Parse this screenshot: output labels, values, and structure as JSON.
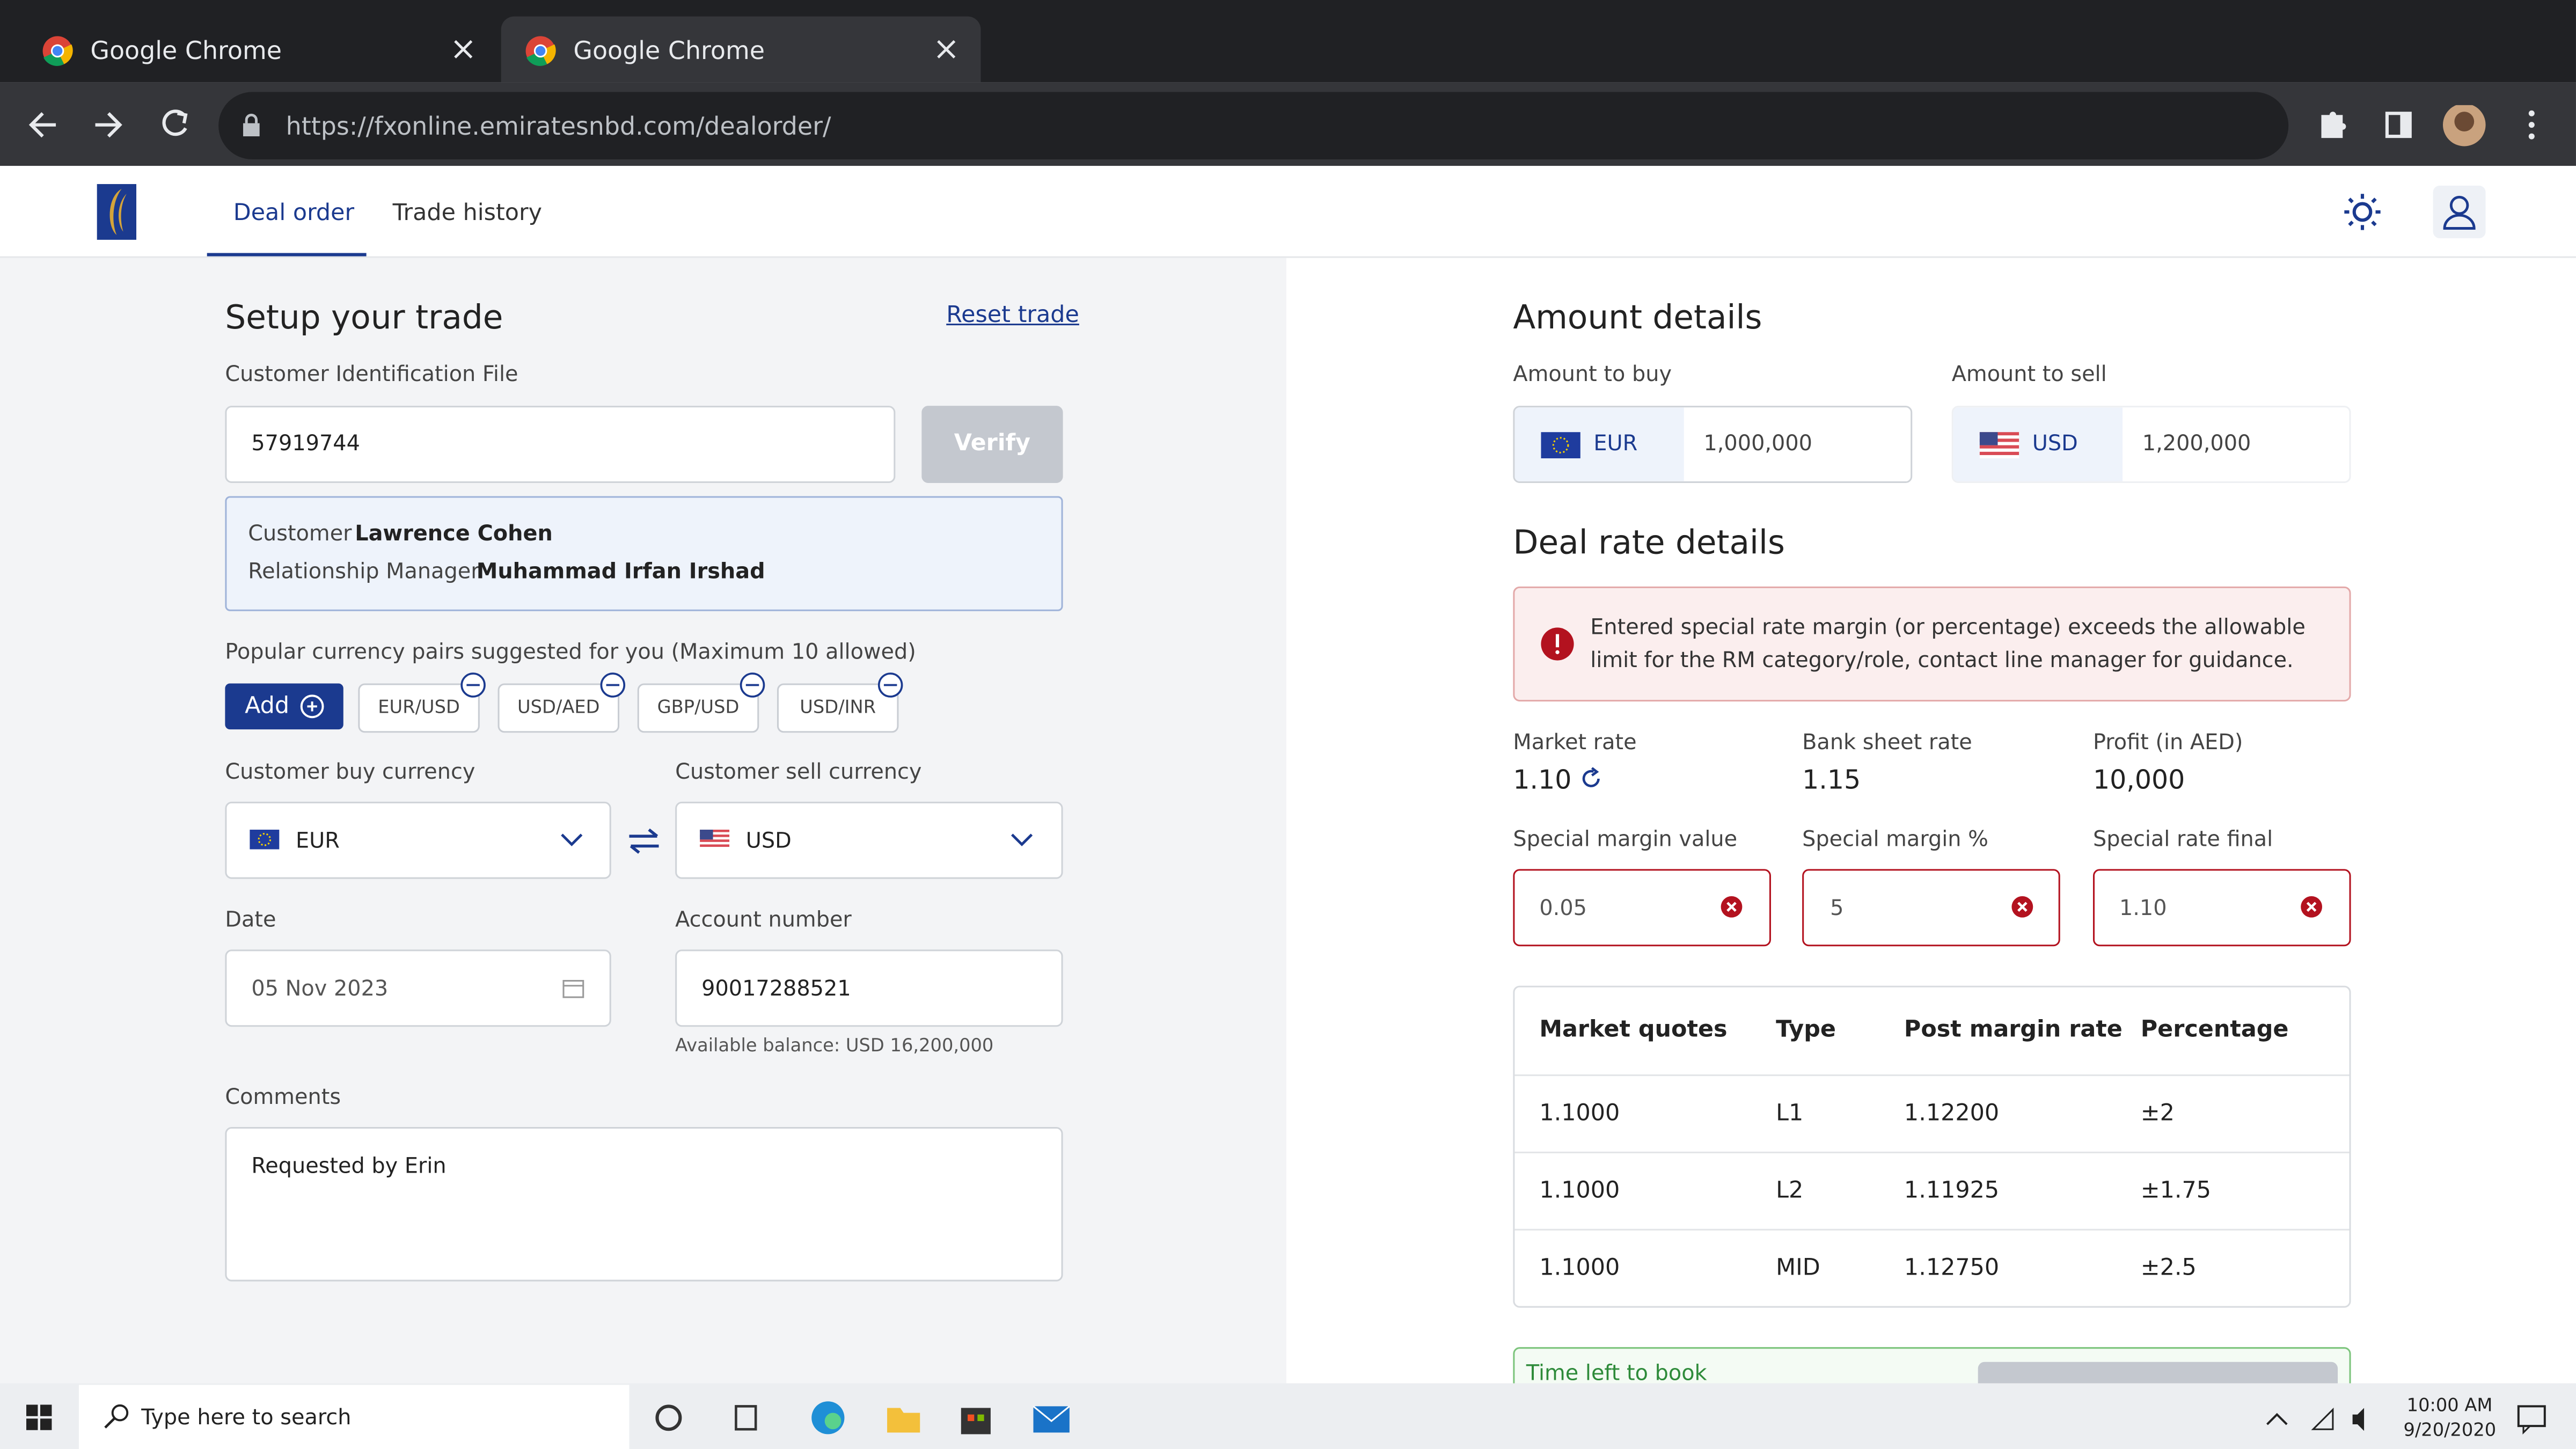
{
  "browser": {
    "tabs": [
      "Google Chrome",
      "Google Chrome"
    ],
    "url": "https://fxonline.emiratesnbd.com/dealorder/"
  },
  "nav": {
    "tabs": [
      "Deal order",
      "Trade history"
    ]
  },
  "setup": {
    "title": "Setup your trade",
    "reset": "Reset trade",
    "id_label": "Customer Identification File",
    "id_value": "57919744",
    "verify": "Verify",
    "customer_label": "Customer",
    "customer": "Lawrence Cohen",
    "rm_label": "Relationship Manager",
    "rm": "Muhammad Irfan Irshad",
    "pairs_label": "Popular currency pairs suggested for you (Maximum 10 allowed)",
    "add": "Add",
    "pairs": [
      "EUR/USD",
      "USD/AED",
      "GBP/USD",
      "USD/INR"
    ],
    "buy_label": "Customer buy currency",
    "buy": "EUR",
    "sell_label": "Customer sell currency",
    "sell": "USD",
    "date_label": "Date",
    "date": "05 Nov 2023",
    "account_label": "Account number",
    "account": "90017288521",
    "balance": "Available balance: USD 16,200,000",
    "comments_label": "Comments",
    "comments": "Requested by Erin"
  },
  "amount": {
    "title": "Amount details",
    "buy_label": "Amount to buy",
    "buy_ccy": "EUR",
    "buy_value": "1,000,000",
    "sell_label": "Amount to sell",
    "sell_ccy": "USD",
    "sell_value": "1,200,000"
  },
  "deal": {
    "title": "Deal rate details",
    "alert": "Entered special rate margin (or percentage) exceeds the allowable limit for the RM category/role, contact line manager for guidance.",
    "stats": [
      {
        "label": "Market rate",
        "value": "1.10"
      },
      {
        "label": "Bank sheet rate",
        "value": "1.15"
      },
      {
        "label": "Profit (in AED)",
        "value": "10,000"
      }
    ],
    "inputs": [
      {
        "label": "Special margin value",
        "value": "0.05"
      },
      {
        "label": "Special margin %",
        "value": "5"
      },
      {
        "label": "Special rate final",
        "value": "1.10"
      }
    ],
    "table": {
      "header": [
        "Market quotes",
        "Type",
        "Post margin rate",
        "Percentage"
      ],
      "rows": [
        [
          "1.1000",
          "L1",
          "1.12200",
          "±2"
        ],
        [
          "1.1000",
          "L2",
          "1.11925",
          "±1.75"
        ],
        [
          "1.1000",
          "MID",
          "1.12750",
          "±2.5"
        ]
      ]
    },
    "time_left": "Time left to book"
  },
  "taskbar": {
    "search": "Type here to search",
    "time": "10:00 AM",
    "date": "9/20/2020"
  }
}
